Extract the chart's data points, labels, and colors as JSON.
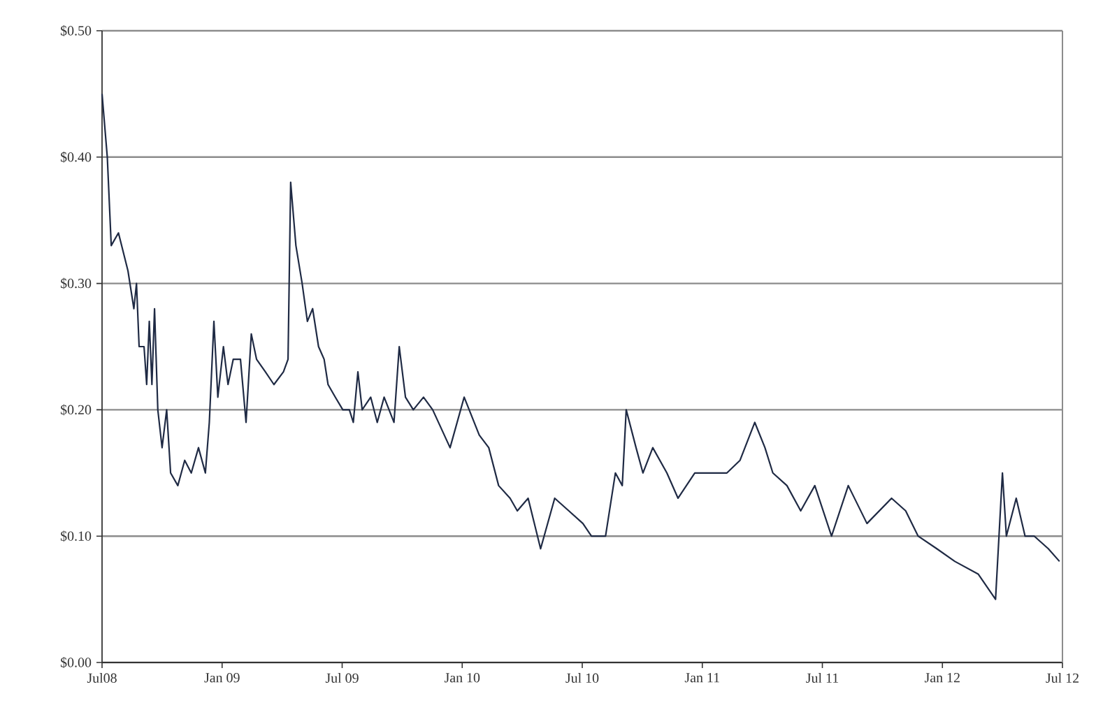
{
  "chart_data": {
    "type": "line",
    "grid": "y",
    "marker": "none",
    "line_style": "solid",
    "xlim": [
      "2008-07",
      "2012-07"
    ],
    "xticks": [
      {
        "value": "2008-07",
        "label": "Jul08"
      },
      {
        "value": "2009-01",
        "label": "Jan 09"
      },
      {
        "value": "2009-07",
        "label": "Jul 09"
      },
      {
        "value": "2010-01",
        "label": "Jan 10"
      },
      {
        "value": "2010-07",
        "label": "Jul 10"
      },
      {
        "value": "2011-01",
        "label": "Jan 11"
      },
      {
        "value": "2011-07",
        "label": "Jul 11"
      },
      {
        "value": "2012-01",
        "label": "Jan 12"
      },
      {
        "value": "2012-07",
        "label": "Jul 12"
      }
    ],
    "ylim": [
      0,
      0.5
    ],
    "yticks": [
      {
        "value": 0,
        "label": "$0.00"
      },
      {
        "value": 0.1,
        "label": "$0.10"
      },
      {
        "value": 0.2,
        "label": "$0.20"
      },
      {
        "value": 0.3,
        "label": "$0.30"
      },
      {
        "value": 0.4,
        "label": "$0.40"
      },
      {
        "value": 0.5,
        "label": "$0.50"
      }
    ],
    "series": [
      {
        "color": "#1f2a44",
        "x": [
          "2008-07-01",
          "2008-07-09",
          "2008-07-15",
          "2008-07-26",
          "2008-08-10",
          "2008-08-19",
          "2008-08-23",
          "2008-08-27",
          "2008-09-04",
          "2008-09-08",
          "2008-09-12",
          "2008-09-16",
          "2008-09-20",
          "2008-09-25",
          "2008-10-01",
          "2008-10-08",
          "2008-10-14",
          "2008-10-25",
          "2008-11-05",
          "2008-11-15",
          "2008-11-26",
          "2008-12-06",
          "2008-12-12",
          "2008-12-19",
          "2008-12-25",
          "2009-01-03",
          "2009-01-10",
          "2009-01-18",
          "2009-01-29",
          "2009-02-07",
          "2009-02-15",
          "2009-02-23",
          "2009-03-06",
          "2009-03-19",
          "2009-04-03",
          "2009-04-10",
          "2009-04-14",
          "2009-04-22",
          "2009-05-01",
          "2009-05-09",
          "2009-05-17",
          "2009-05-26",
          "2009-06-04",
          "2009-06-10",
          "2009-06-21",
          "2009-07-02",
          "2009-07-12",
          "2009-07-18",
          "2009-07-25",
          "2009-08-01",
          "2009-08-14",
          "2009-08-24",
          "2009-09-04",
          "2009-09-19",
          "2009-09-27",
          "2009-10-06",
          "2009-10-18",
          "2009-11-03",
          "2009-11-17",
          "2009-12-13",
          "2010-01-04",
          "2010-01-27",
          "2010-02-11",
          "2010-02-26",
          "2010-03-13",
          "2010-03-24",
          "2010-04-10",
          "2010-04-29",
          "2010-05-20",
          "2010-06-11",
          "2010-07-02",
          "2010-07-15",
          "2010-08-06",
          "2010-08-21",
          "2010-09-01",
          "2010-09-07",
          "2010-09-22",
          "2010-10-02",
          "2010-10-17",
          "2010-11-08",
          "2010-11-25",
          "2010-12-20",
          "2011-01-11",
          "2011-02-08",
          "2011-02-28",
          "2011-03-20",
          "2011-04-05",
          "2011-04-17",
          "2011-05-08",
          "2011-05-29",
          "2011-06-20",
          "2011-07-15",
          "2011-08-10",
          "2011-09-08",
          "2011-10-15",
          "2011-11-06",
          "2011-11-25",
          "2011-12-23",
          "2012-01-20",
          "2012-02-25",
          "2012-03-21",
          "2012-04-01",
          "2012-04-07",
          "2012-04-22",
          "2012-05-05",
          "2012-05-19",
          "2012-06-10",
          "2012-06-27"
        ],
        "values": [
          0.45,
          0.4,
          0.33,
          0.34,
          0.31,
          0.28,
          0.3,
          0.25,
          0.25,
          0.22,
          0.27,
          0.22,
          0.28,
          0.2,
          0.17,
          0.2,
          0.15,
          0.14,
          0.16,
          0.15,
          0.17,
          0.15,
          0.19,
          0.27,
          0.21,
          0.25,
          0.22,
          0.24,
          0.24,
          0.19,
          0.26,
          0.24,
          0.23,
          0.22,
          0.23,
          0.24,
          0.38,
          0.33,
          0.3,
          0.27,
          0.28,
          0.25,
          0.24,
          0.22,
          0.21,
          0.2,
          0.2,
          0.19,
          0.23,
          0.2,
          0.21,
          0.19,
          0.21,
          0.19,
          0.25,
          0.21,
          0.2,
          0.21,
          0.2,
          0.17,
          0.21,
          0.18,
          0.17,
          0.14,
          0.13,
          0.12,
          0.13,
          0.09,
          0.13,
          0.12,
          0.11,
          0.1,
          0.1,
          0.15,
          0.14,
          0.2,
          0.17,
          0.15,
          0.17,
          0.15,
          0.13,
          0.15,
          0.15,
          0.15,
          0.16,
          0.19,
          0.17,
          0.15,
          0.14,
          0.12,
          0.14,
          0.1,
          0.14,
          0.11,
          0.13,
          0.12,
          0.1,
          0.09,
          0.08,
          0.07,
          0.05,
          0.15,
          0.1,
          0.13,
          0.1,
          0.1,
          0.09,
          0.08
        ]
      }
    ]
  }
}
